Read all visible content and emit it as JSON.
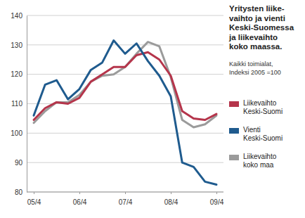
{
  "chart_data": {
    "type": "line",
    "title": [
      "Yritysten liike-",
      "vaihto ja vienti",
      "Keski-Suomessa",
      "ja liikevaihto",
      "koko maassa."
    ],
    "subtitle": [
      "Kaikki toimialat,",
      "Indeksi 2005 =100"
    ],
    "categories": [
      "05/4",
      null,
      null,
      null,
      "06/4",
      null,
      null,
      null,
      "07/4",
      null,
      null,
      null,
      "08/4",
      null,
      null,
      null,
      "09/4"
    ],
    "series": [
      {
        "name": "Liikevaihto Keski-Suomi",
        "color": "#b5354b",
        "values": [
          104.5,
          108.5,
          110.5,
          110,
          112,
          117.5,
          120,
          122.5,
          122.5,
          126.5,
          127.5,
          125,
          119.5,
          107.5,
          105,
          104.5,
          106.5
        ]
      },
      {
        "name": "Vienti Keski-Suomi",
        "color": "#1f5b8e",
        "values": [
          106,
          116.5,
          118,
          111.5,
          115,
          121.5,
          124,
          131.5,
          127,
          130.5,
          124.5,
          119.5,
          112.5,
          90,
          88.5,
          83.5,
          82.5
        ]
      },
      {
        "name": "Liikevaihto koko maa",
        "color": "#9b9b9b",
        "values": [
          103.5,
          107.5,
          110.5,
          110.5,
          113,
          117.5,
          119.5,
          120,
          122.5,
          127,
          131,
          129.5,
          119,
          104.5,
          102,
          103,
          106
        ]
      }
    ],
    "ylim": [
      80,
      140
    ],
    "yticks": [
      80,
      90,
      100,
      110,
      120,
      130,
      140
    ],
    "grid": true,
    "legend": "right"
  }
}
